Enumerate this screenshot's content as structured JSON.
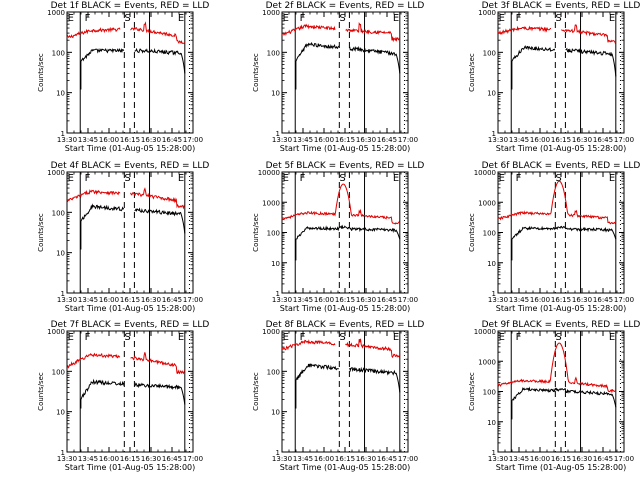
{
  "colors": {
    "events": "#000000",
    "lld": "#e00000",
    "background": "#ffffff",
    "axes": "#000000"
  },
  "chart_data": [
    {
      "type": "line",
      "title": "Det 1f BLACK = Events, RED = LLD",
      "xlabel": "Start Time (01-Aug-05 15:28:00)",
      "ylabel": "Counts/sec",
      "yscale": "log",
      "ylim": [
        1,
        1000
      ],
      "xlim": [
        "13:30",
        "17:10"
      ],
      "x_ticks": [
        "13:30",
        "13:45",
        "16:00",
        "16:15",
        "16:30",
        "16:45",
        "17:00"
      ],
      "y_ticks": [
        "1",
        "10",
        "100",
        "1000"
      ],
      "markers": [
        "E",
        "F",
        "S",
        "E"
      ],
      "events_level": "~90-130 counts/sec",
      "lld_level": "~220-400 counts/sec",
      "peak": null
    },
    {
      "type": "line",
      "title": "Det 2f BLACK = Events, RED = LLD",
      "xlabel": "Start Time (01-Aug-05 15:28:00)",
      "ylabel": "Counts/sec",
      "yscale": "log",
      "ylim": [
        1,
        1000
      ],
      "xlim": [
        "13:30",
        "17:10"
      ],
      "x_ticks": [
        "13:30",
        "13:45",
        "16:00",
        "16:15",
        "16:30",
        "16:45",
        "17:00"
      ],
      "y_ticks": [
        "1",
        "10",
        "100",
        "1000"
      ],
      "markers": [
        "E",
        "F",
        "S",
        "E"
      ],
      "events_level": "~100-180 counts/sec",
      "lld_level": "~250-550 counts/sec",
      "peak": null
    },
    {
      "type": "line",
      "title": "Det 3f BLACK = Events, RED = LLD",
      "xlabel": "Start Time (01-Aug-05 15:28:00)",
      "ylabel": "Counts/sec",
      "yscale": "log",
      "ylim": [
        1,
        1000
      ],
      "xlim": [
        "13:30",
        "17:10"
      ],
      "x_ticks": [
        "13:30",
        "13:45",
        "16:00",
        "16:15",
        "16:30",
        "16:45",
        "17:00"
      ],
      "y_ticks": [
        "1",
        "10",
        "100",
        "1000"
      ],
      "markers": [
        "E",
        "F",
        "S",
        "E"
      ],
      "events_level": "~90-150 counts/sec",
      "lld_level": "~250-450 counts/sec",
      "peak": null
    },
    {
      "type": "line",
      "title": "Det 4f BLACK = Events, RED = LLD",
      "xlabel": "Start Time (01-Aug-05 15:28:00)",
      "ylabel": "Counts/sec",
      "yscale": "log",
      "ylim": [
        1,
        1000
      ],
      "xlim": [
        "13:30",
        "17:10"
      ],
      "x_ticks": [
        "13:30",
        "13:45",
        "16:00",
        "16:15",
        "16:30",
        "16:45",
        "17:00"
      ],
      "y_ticks": [
        "1",
        "10",
        "100",
        "1000"
      ],
      "markers": [
        "E",
        "F",
        "S",
        "E"
      ],
      "events_level": "~90-150 counts/sec",
      "lld_level": "~180-400 counts/sec",
      "peak": null
    },
    {
      "type": "line",
      "title": "Det 5f BLACK = Events, RED = LLD",
      "xlabel": "Start Time (01-Aug-05 15:28:00)",
      "ylabel": "Counts/sec",
      "yscale": "log",
      "ylim": [
        1,
        10000
      ],
      "xlim": [
        "13:30",
        "17:10"
      ],
      "x_ticks": [
        "13:30",
        "13:45",
        "16:00",
        "16:15",
        "16:30",
        "16:45",
        "17:00"
      ],
      "y_ticks": [
        "1",
        "10",
        "100",
        "1000",
        "10000"
      ],
      "markers": [
        "E",
        "F",
        "S",
        "E"
      ],
      "events_level": "~100-150 counts/sec",
      "lld_level": "~250-600 counts/sec",
      "peak": "~4000 counts/sec"
    },
    {
      "type": "line",
      "title": "Det 6f BLACK = Events, RED = LLD",
      "xlabel": "Start Time (01-Aug-05 15:28:00)",
      "ylabel": "Counts/sec",
      "yscale": "log",
      "ylim": [
        1,
        10000
      ],
      "xlim": [
        "13:30",
        "17:10"
      ],
      "x_ticks": [
        "13:30",
        "13:45",
        "16:00",
        "16:15",
        "16:30",
        "16:45",
        "17:00"
      ],
      "y_ticks": [
        "1",
        "10",
        "100",
        "1000",
        "10000"
      ],
      "markers": [
        "E",
        "F",
        "S",
        "E"
      ],
      "events_level": "~100-150 counts/sec",
      "lld_level": "~250-550 counts/sec",
      "peak": "~5000 counts/sec"
    },
    {
      "type": "line",
      "title": "Det 7f BLACK = Events, RED = LLD",
      "xlabel": "Start Time (01-Aug-05 15:28:00)",
      "ylabel": "Counts/sec",
      "yscale": "log",
      "ylim": [
        1,
        1000
      ],
      "xlim": [
        "13:30",
        "17:10"
      ],
      "x_ticks": [
        "13:30",
        "13:45",
        "16:00",
        "16:15",
        "16:30",
        "16:45",
        "17:00"
      ],
      "y_ticks": [
        "1",
        "10",
        "100",
        "1000"
      ],
      "markers": [
        "E",
        "F",
        "S",
        "E"
      ],
      "events_level": "~35-60 counts/sec",
      "lld_level": "~120-300 counts/sec",
      "peak": null
    },
    {
      "type": "line",
      "title": "Det 8f BLACK = Events, RED = LLD",
      "xlabel": "Start Time (01-Aug-05 15:28:00)",
      "ylabel": "Counts/sec",
      "yscale": "log",
      "ylim": [
        1,
        1000
      ],
      "xlim": [
        "13:30",
        "17:10"
      ],
      "x_ticks": [
        "13:30",
        "13:45",
        "16:00",
        "16:15",
        "16:30",
        "16:45",
        "17:00"
      ],
      "y_ticks": [
        "1",
        "10",
        "100",
        "1000"
      ],
      "markers": [
        "E",
        "F",
        "S",
        "E"
      ],
      "events_level": "~90-150 counts/sec",
      "lld_level": "~300-600 counts/sec",
      "peak": null
    },
    {
      "type": "line",
      "title": "Det 9f BLACK = Events, RED = LLD",
      "xlabel": "Start Time (01-Aug-05 15:28:00)",
      "ylabel": "Counts/sec",
      "yscale": "log",
      "ylim": [
        1,
        10000
      ],
      "xlim": [
        "13:30",
        "17:10"
      ],
      "x_ticks": [
        "13:30",
        "13:45",
        "16:00",
        "16:15",
        "16:30",
        "16:45",
        "17:00"
      ],
      "y_ticks": [
        "1",
        "10",
        "100",
        "1000",
        "10000"
      ],
      "markers": [
        "E",
        "F",
        "S",
        "E"
      ],
      "events_level": "~70-150 counts/sec",
      "lld_level": "~130-250 counts/sec",
      "peak": "~4000 counts/sec"
    }
  ]
}
